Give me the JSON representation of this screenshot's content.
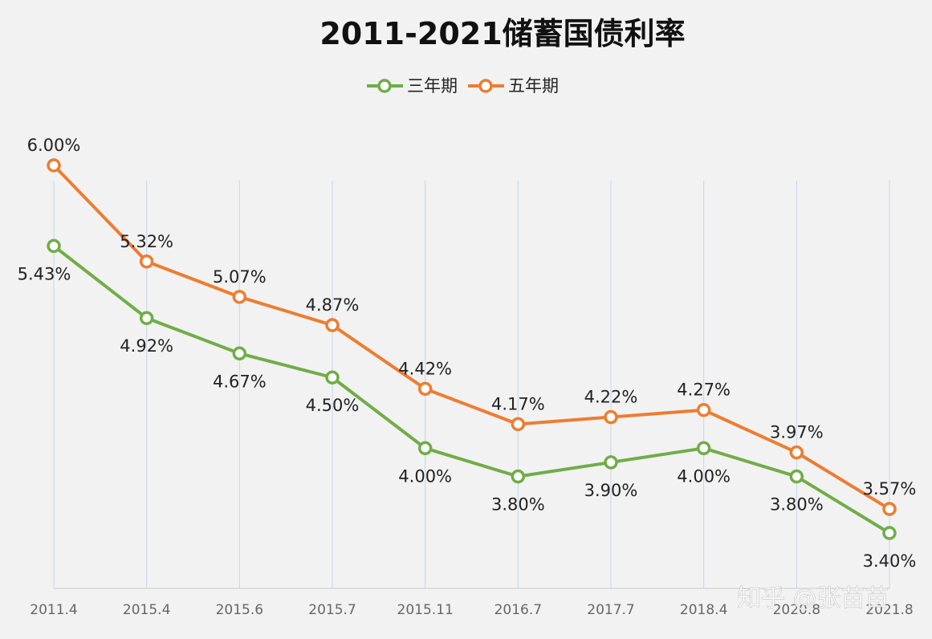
{
  "chart_data": {
    "type": "line",
    "title": "2011-2021储蓄国债利率",
    "categories": [
      "2011.4",
      "2015.4",
      "2015.6",
      "2015.7",
      "2015.11",
      "2016.7",
      "2017.7",
      "2018.4",
      "2020.8",
      "2021.8"
    ],
    "series": [
      {
        "name": "三年期",
        "color": "#70ad47",
        "values": [
          5.43,
          4.92,
          4.67,
          4.5,
          4.0,
          3.8,
          3.9,
          4.0,
          3.8,
          3.4
        ],
        "labels": [
          "5.43%",
          "4.92%",
          "4.67%",
          "4.50%",
          "4.00%",
          "3.80%",
          "3.90%",
          "4.00%",
          "3.80%",
          "3.40%"
        ]
      },
      {
        "name": "五年期",
        "color": "#ed7d31",
        "values": [
          6.0,
          5.32,
          5.07,
          4.87,
          4.42,
          4.17,
          4.22,
          4.27,
          3.97,
          3.57
        ],
        "labels": [
          "6.00%",
          "5.32%",
          "5.07%",
          "4.87%",
          "4.42%",
          "4.17%",
          "4.22%",
          "4.27%",
          "3.97%",
          "3.57%"
        ]
      }
    ],
    "legend_position": "top",
    "grid": "vertical",
    "ylim": [
      3.0,
      6.0
    ]
  },
  "watermark": "知乎 @张苗苗"
}
